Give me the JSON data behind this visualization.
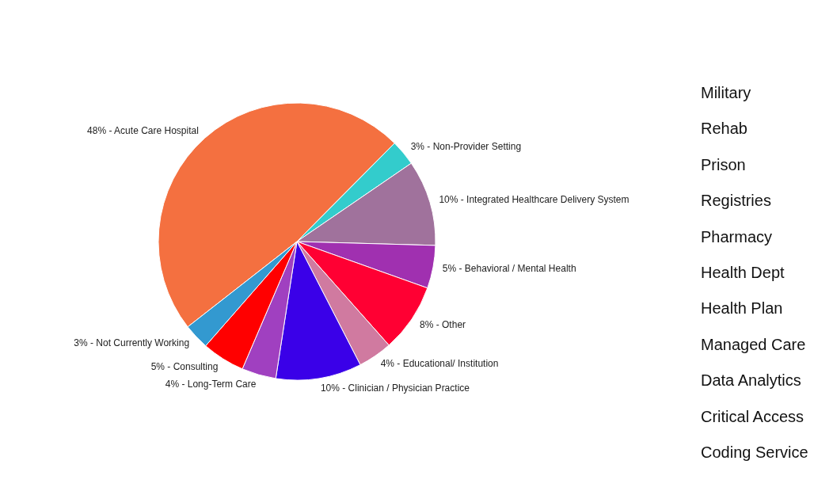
{
  "chart_data": {
    "type": "pie",
    "categories": [
      "Acute Care Hospital",
      "Non-Provider Setting",
      "Integrated Healthcare Delivery System",
      "Behavioral / Mental Health",
      "Other",
      "Educational/ Institution",
      "Clinician / Physician Practice",
      "Long-Term Care",
      "Consulting",
      "Not Currently Working"
    ],
    "values": [
      48,
      3,
      10,
      5,
      8,
      4,
      10,
      4,
      5,
      3
    ],
    "colors": [
      "#f47040",
      "#33cccc",
      "#a0729c",
      "#a030b0",
      "#ff0033",
      "#d07aa0",
      "#3a00e8",
      "#a040c0",
      "#ff0000",
      "#3399d0"
    ],
    "value_labels": [
      "48%",
      "3%",
      "10%",
      "5%",
      "8%",
      "4%",
      "10%",
      "4%",
      "5%",
      "3%"
    ],
    "annotations": [
      "Military",
      "Rehab",
      "Prison",
      "Registries",
      "Pharmacy",
      "Health Dept",
      "Health Plan",
      "Managed Care",
      "Data Analytics",
      "Critical Access",
      "Coding Service"
    ],
    "legend": false
  }
}
